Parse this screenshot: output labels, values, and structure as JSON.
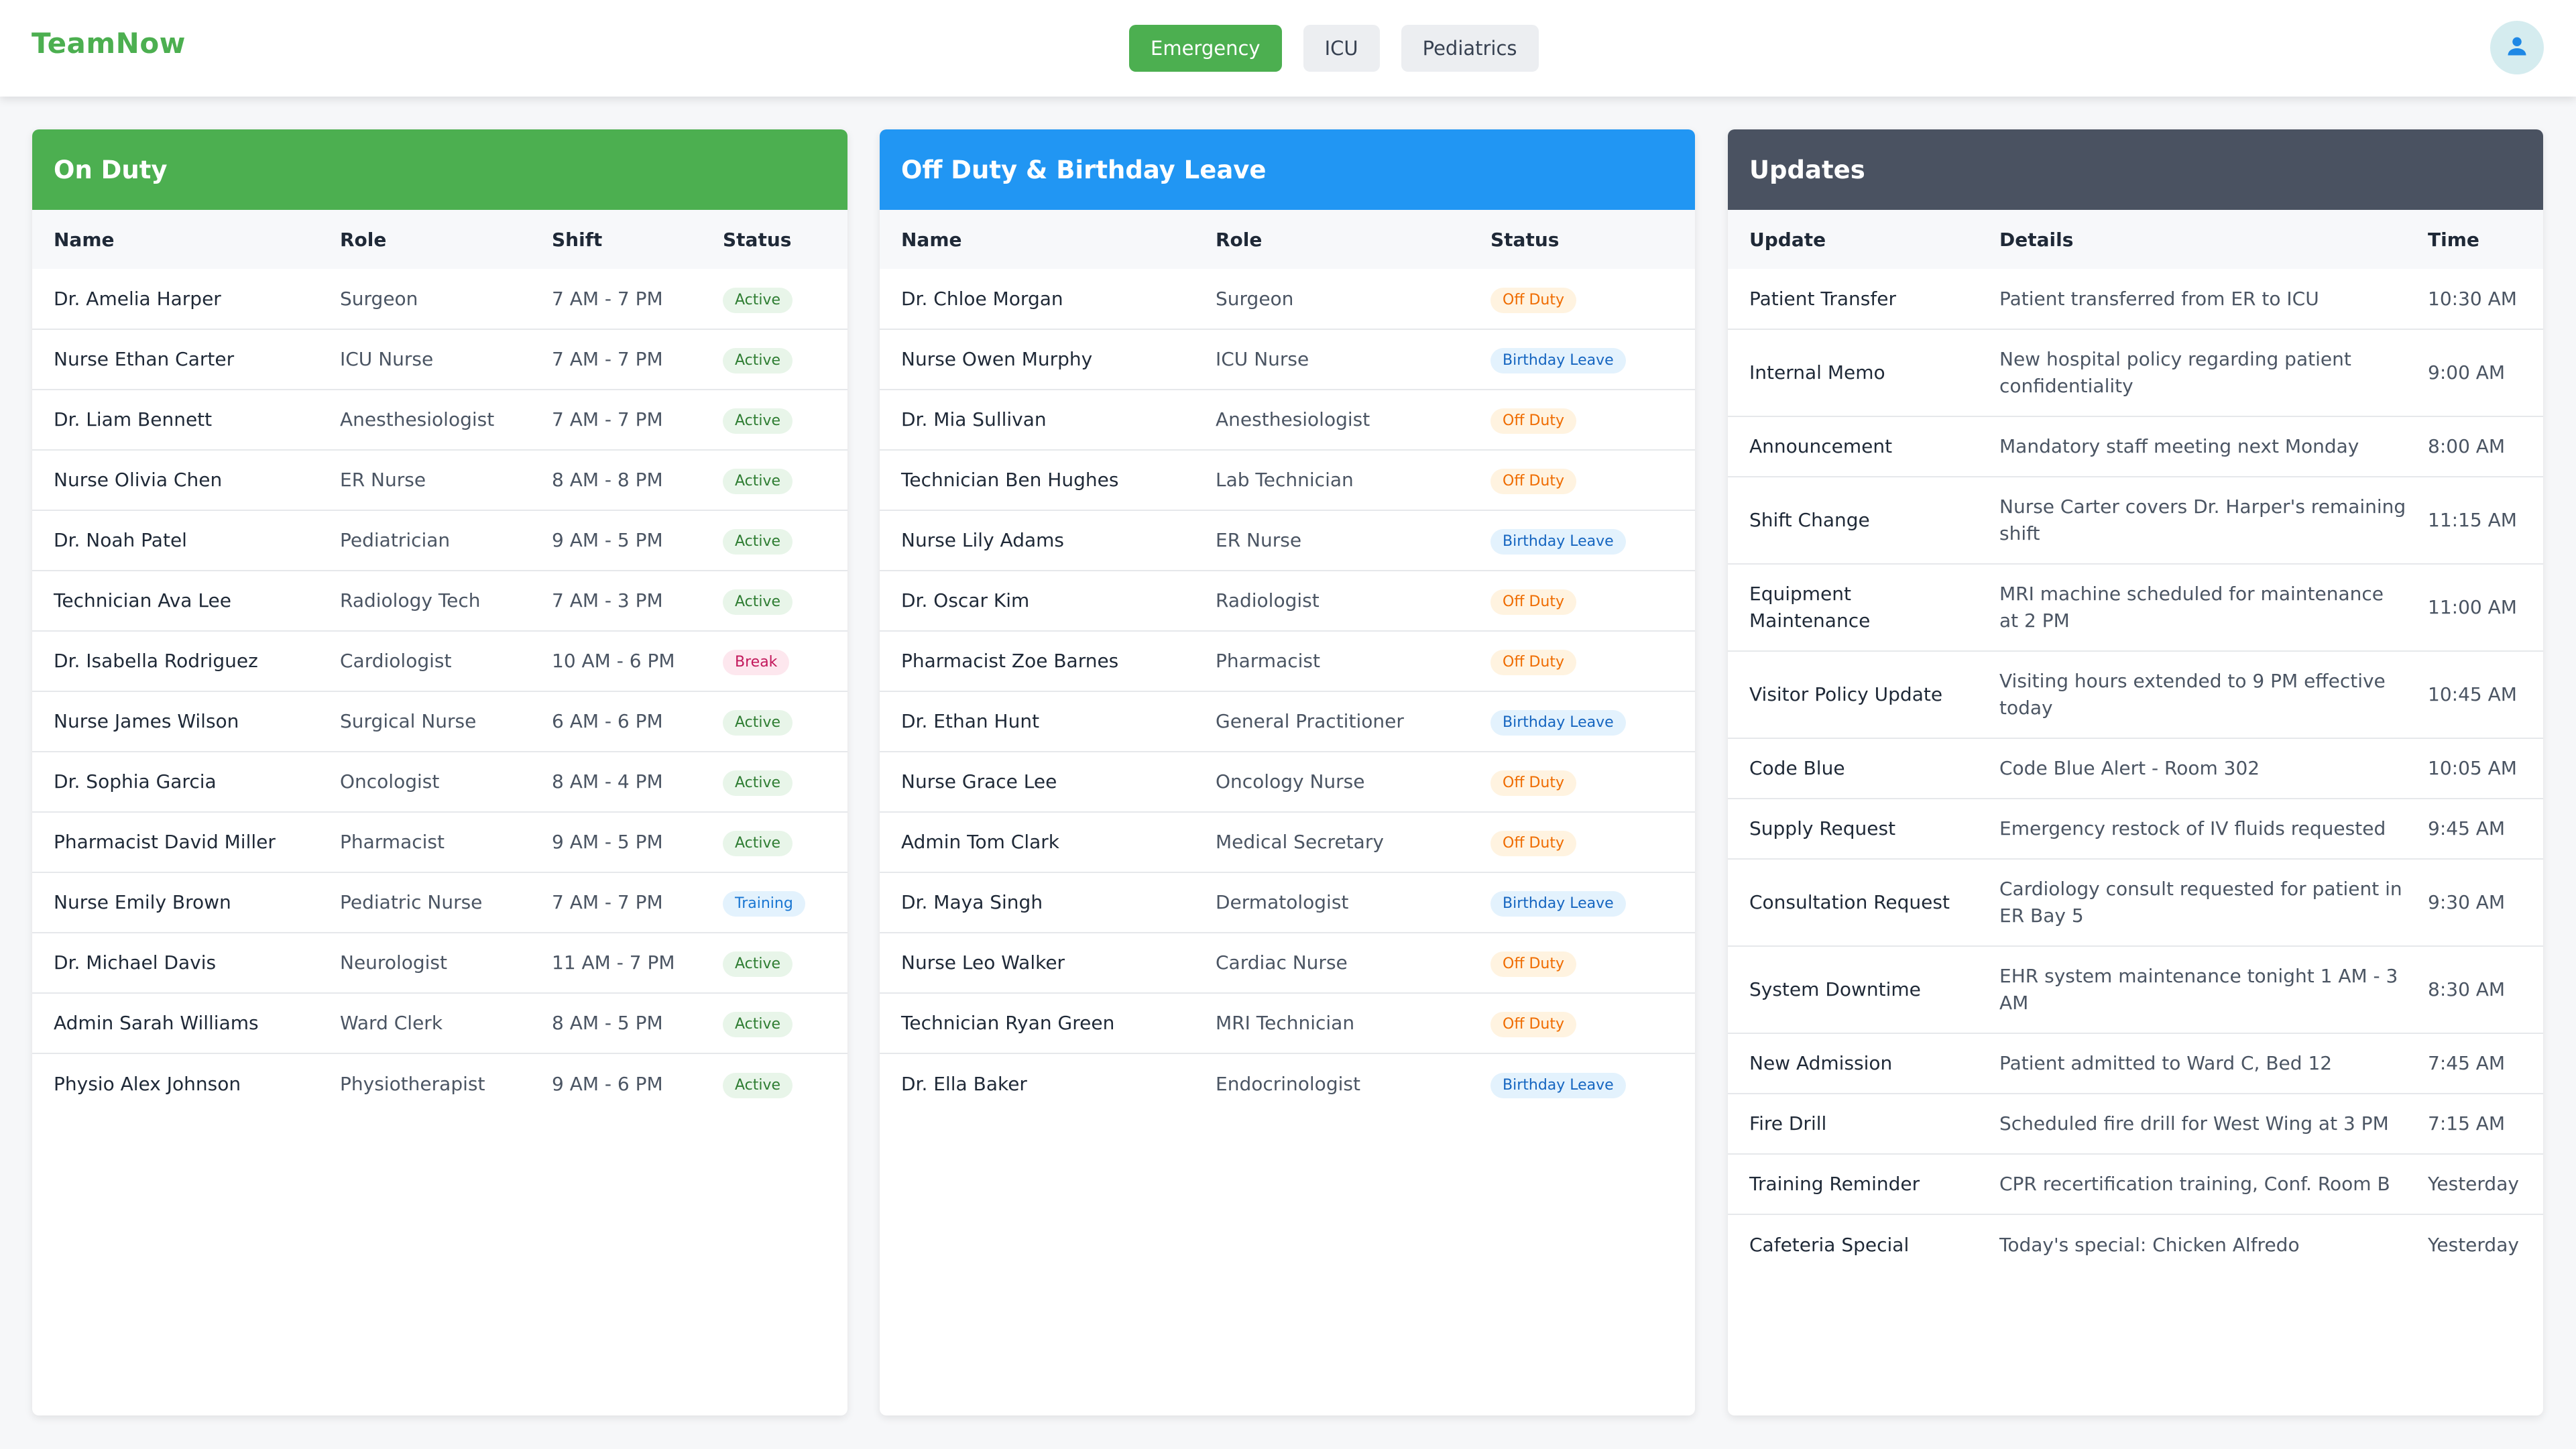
{
  "app": {
    "title": "TeamNow"
  },
  "header": {
    "tabs": [
      {
        "label": "Emergency",
        "active": true
      },
      {
        "label": "ICU",
        "active": false
      },
      {
        "label": "Pediatrics",
        "active": false
      }
    ],
    "avatar_icon": "user-icon"
  },
  "colors": {
    "brand_green": "#4caf50",
    "offduty_blue": "#2196f3",
    "updates_slate": "#4a5261"
  },
  "on_duty": {
    "title": "On Duty",
    "columns": [
      "Name",
      "Role",
      "Shift",
      "Status"
    ],
    "rows": [
      {
        "name": "Dr. Amelia Harper",
        "role": "Surgeon",
        "shift": "7 AM - 7 PM",
        "status": "Active"
      },
      {
        "name": "Nurse Ethan Carter",
        "role": "ICU Nurse",
        "shift": "7 AM - 7 PM",
        "status": "Active"
      },
      {
        "name": "Dr. Liam Bennett",
        "role": "Anesthesiologist",
        "shift": "7 AM - 7 PM",
        "status": "Active"
      },
      {
        "name": "Nurse Olivia Chen",
        "role": "ER Nurse",
        "shift": "8 AM - 8 PM",
        "status": "Active"
      },
      {
        "name": "Dr. Noah Patel",
        "role": "Pediatrician",
        "shift": "9 AM - 5 PM",
        "status": "Active"
      },
      {
        "name": "Technician Ava Lee",
        "role": "Radiology Tech",
        "shift": "7 AM - 3 PM",
        "status": "Active"
      },
      {
        "name": "Dr. Isabella Rodriguez",
        "role": "Cardiologist",
        "shift": "10 AM - 6 PM",
        "status": "Break"
      },
      {
        "name": "Nurse James Wilson",
        "role": "Surgical Nurse",
        "shift": "6 AM - 6 PM",
        "status": "Active"
      },
      {
        "name": "Dr. Sophia Garcia",
        "role": "Oncologist",
        "shift": "8 AM - 4 PM",
        "status": "Active"
      },
      {
        "name": "Pharmacist David Miller",
        "role": "Pharmacist",
        "shift": "9 AM - 5 PM",
        "status": "Active"
      },
      {
        "name": "Nurse Emily Brown",
        "role": "Pediatric Nurse",
        "shift": "7 AM - 7 PM",
        "status": "Training"
      },
      {
        "name": "Dr. Michael Davis",
        "role": "Neurologist",
        "shift": "11 AM - 7 PM",
        "status": "Active"
      },
      {
        "name": "Admin Sarah Williams",
        "role": "Ward Clerk",
        "shift": "8 AM - 5 PM",
        "status": "Active"
      },
      {
        "name": "Physio Alex Johnson",
        "role": "Physiotherapist",
        "shift": "9 AM - 6 PM",
        "status": "Active"
      }
    ]
  },
  "off_duty": {
    "title": "Off Duty & Birthday Leave",
    "columns": [
      "Name",
      "Role",
      "Status"
    ],
    "rows": [
      {
        "name": "Dr. Chloe Morgan",
        "role": "Surgeon",
        "status": "Off Duty"
      },
      {
        "name": "Nurse Owen Murphy",
        "role": "ICU Nurse",
        "status": "Birthday Leave"
      },
      {
        "name": "Dr. Mia Sullivan",
        "role": "Anesthesiologist",
        "status": "Off Duty"
      },
      {
        "name": "Technician Ben Hughes",
        "role": "Lab Technician",
        "status": "Off Duty"
      },
      {
        "name": "Nurse Lily Adams",
        "role": "ER Nurse",
        "status": "Birthday Leave"
      },
      {
        "name": "Dr. Oscar Kim",
        "role": "Radiologist",
        "status": "Off Duty"
      },
      {
        "name": "Pharmacist Zoe Barnes",
        "role": "Pharmacist",
        "status": "Off Duty"
      },
      {
        "name": "Dr. Ethan Hunt",
        "role": "General Practitioner",
        "status": "Birthday Leave"
      },
      {
        "name": "Nurse Grace Lee",
        "role": "Oncology Nurse",
        "status": "Off Duty"
      },
      {
        "name": "Admin Tom Clark",
        "role": "Medical Secretary",
        "status": "Off Duty"
      },
      {
        "name": "Dr. Maya Singh",
        "role": "Dermatologist",
        "status": "Birthday Leave"
      },
      {
        "name": "Nurse Leo Walker",
        "role": "Cardiac Nurse",
        "status": "Off Duty"
      },
      {
        "name": "Technician Ryan Green",
        "role": "MRI Technician",
        "status": "Off Duty"
      },
      {
        "name": "Dr. Ella Baker",
        "role": "Endocrinologist",
        "status": "Birthday Leave"
      }
    ]
  },
  "updates": {
    "title": "Updates",
    "columns": [
      "Update",
      "Details",
      "Time"
    ],
    "rows": [
      {
        "update": "Patient Transfer",
        "details": "Patient transferred from ER to ICU",
        "time": "10:30 AM"
      },
      {
        "update": "Internal Memo",
        "details": "New hospital policy regarding patient confidentiality",
        "time": "9:00 AM"
      },
      {
        "update": "Announcement",
        "details": "Mandatory staff meeting next Monday",
        "time": "8:00 AM"
      },
      {
        "update": "Shift Change",
        "details": "Nurse Carter covers Dr. Harper's remaining shift",
        "time": "11:15 AM"
      },
      {
        "update": "Equipment Maintenance",
        "details": "MRI machine scheduled for maintenance at 2 PM",
        "time": "11:00 AM"
      },
      {
        "update": "Visitor Policy Update",
        "details": "Visiting hours extended to 9 PM effective today",
        "time": "10:45 AM"
      },
      {
        "update": "Code Blue",
        "details": "Code Blue Alert - Room 302",
        "time": "10:05 AM"
      },
      {
        "update": "Supply Request",
        "details": "Emergency restock of IV fluids requested",
        "time": "9:45 AM"
      },
      {
        "update": "Consultation Request",
        "details": "Cardiology consult requested for patient in ER Bay 5",
        "time": "9:30 AM"
      },
      {
        "update": "System Downtime",
        "details": "EHR system maintenance tonight 1 AM - 3 AM",
        "time": "8:30 AM"
      },
      {
        "update": "New Admission",
        "details": "Patient admitted to Ward C, Bed 12",
        "time": "7:45 AM"
      },
      {
        "update": "Fire Drill",
        "details": "Scheduled fire drill for West Wing at 3 PM",
        "time": "7:15 AM"
      },
      {
        "update": "Training Reminder",
        "details": "CPR recertification training, Conf. Room B",
        "time": "Yesterday"
      },
      {
        "update": "Cafeteria Special",
        "details": "Today's special: Chicken Alfredo",
        "time": "Yesterday"
      }
    ]
  }
}
